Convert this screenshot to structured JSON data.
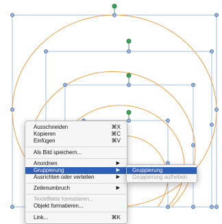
{
  "context_menu": {
    "cut": {
      "label": "Ausschneiden",
      "shortcut": "⌘X"
    },
    "copy": {
      "label": "Kopieren",
      "shortcut": "⌘C"
    },
    "paste": {
      "label": "Einfügen",
      "shortcut": "⌘V"
    },
    "save_as_image": {
      "label": "Als Bild speichern..."
    },
    "arrange": {
      "label": "Anordnen",
      "arrow": "▶"
    },
    "group": {
      "label": "Gruppierung",
      "arrow": "▶"
    },
    "align_distribute": {
      "label": "Ausrichten oder verteilen",
      "arrow": "▶"
    },
    "line_break": {
      "label": "Zeilenumbruch",
      "arrow": "▶"
    },
    "text_effects": {
      "label": "Texteffekte formatieren..."
    },
    "format_object": {
      "label": "Objekt formatieren..."
    },
    "link": {
      "label": "Link...",
      "shortcut": "⌘K"
    }
  },
  "submenu": {
    "group": {
      "label": "Gruppierung"
    },
    "ungroup": {
      "label": "Gruppierung aufheben"
    }
  },
  "colors": {
    "arc_stroke": "#f0a040",
    "frame_stroke": "#9cc0e4",
    "handle_fill": "#9bb4d8",
    "handle_stroke": "#5a7fb8",
    "rotate_handle": "#3aa55a",
    "menu_highlight": "#2f5fb7"
  }
}
